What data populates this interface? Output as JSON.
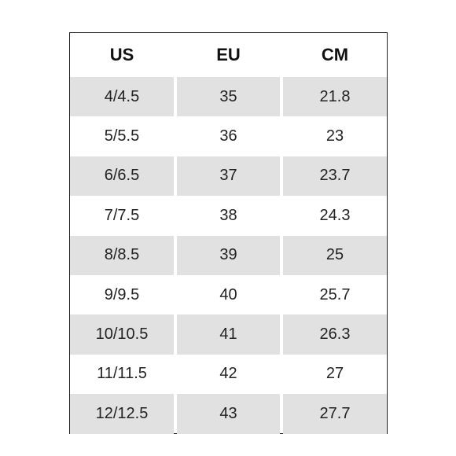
{
  "table": {
    "header": [
      "US",
      "EU",
      "CM"
    ],
    "rows": [
      [
        "4/4.5",
        35,
        21.8
      ],
      [
        "5/5.5",
        36,
        23
      ],
      [
        "6/6.5",
        37,
        23.7
      ],
      [
        "7/7.5",
        38,
        24.3
      ],
      [
        "8/8.5",
        39,
        25
      ],
      [
        "9/9.5",
        40,
        25.7
      ],
      [
        "10/10.5",
        41,
        26.3
      ],
      [
        "11/11.5",
        42,
        27
      ],
      [
        "12/12.5",
        43,
        27.7
      ]
    ]
  }
}
